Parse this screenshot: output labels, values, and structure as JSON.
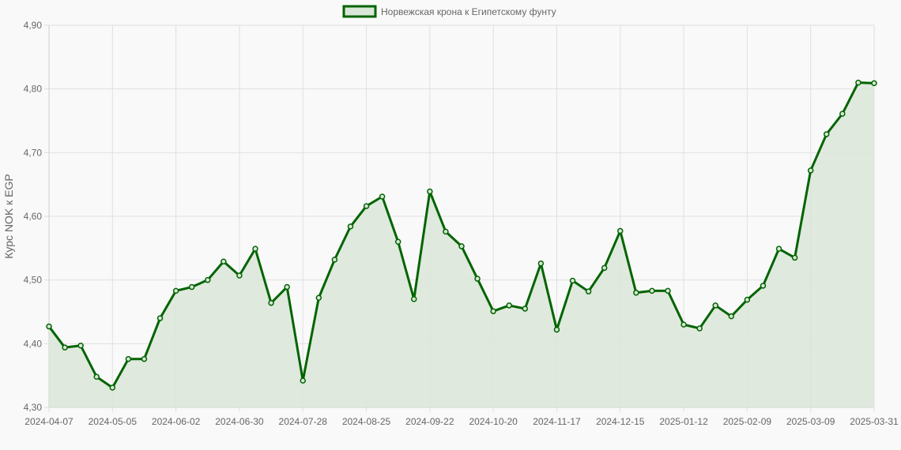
{
  "chart_data": {
    "type": "line",
    "ylabel": "Курс NOK к EGP",
    "xlabel": "",
    "ylim": [
      4.3,
      4.9
    ],
    "y_ticks": [
      "4,30",
      "4,40",
      "4,50",
      "4,60",
      "4,70",
      "4,80",
      "4,90"
    ],
    "x_tick_labels": [
      "2024-04-07",
      "2024-05-05",
      "2024-06-02",
      "2024-06-30",
      "2024-07-28",
      "2024-08-25",
      "2024-09-22",
      "2024-10-20",
      "2024-11-17",
      "2024-12-15",
      "2025-01-12",
      "2025-02-09",
      "2025-03-09",
      "2025-03-31"
    ],
    "grid": true,
    "legend": "top-center",
    "area_fill": true,
    "colors": {
      "line": "#006400",
      "fill": "#dae6d8",
      "grid": "#e0e0e0",
      "text": "#666666"
    },
    "series": [
      {
        "name": "Норвежская крона к Египетскому фунту",
        "values": [
          4.427,
          4.394,
          4.397,
          4.348,
          4.331,
          4.376,
          4.376,
          4.44,
          4.483,
          4.489,
          4.5,
          4.529,
          4.507,
          4.549,
          4.464,
          4.489,
          4.342,
          4.472,
          4.532,
          4.584,
          4.616,
          4.631,
          4.56,
          4.47,
          4.639,
          4.576,
          4.553,
          4.502,
          4.451,
          4.46,
          4.455,
          4.526,
          4.422,
          4.499,
          4.482,
          4.519,
          4.577,
          4.48,
          4.483,
          4.483,
          4.43,
          4.424,
          4.46,
          4.443,
          4.469,
          4.491,
          4.549,
          4.535,
          4.672,
          4.729,
          4.761,
          4.81,
          4.809
        ]
      }
    ]
  }
}
